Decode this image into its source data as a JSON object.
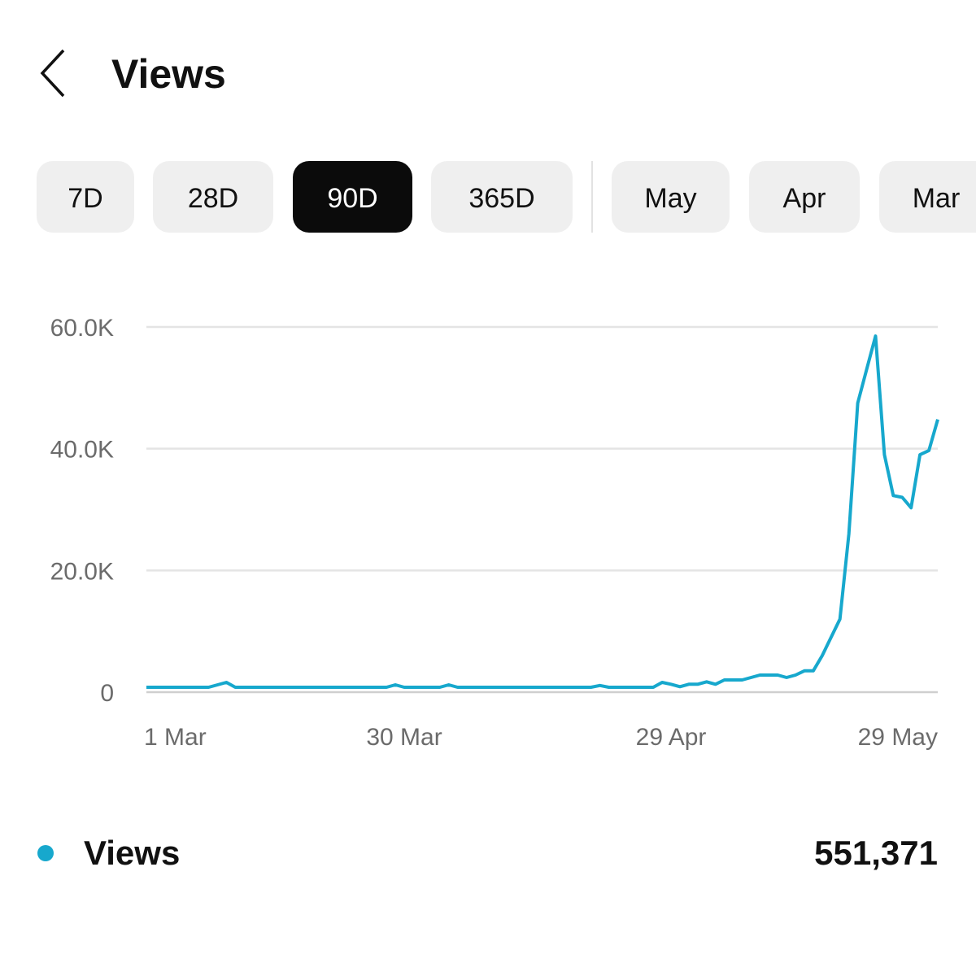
{
  "header": {
    "title": "Views"
  },
  "tabs": [
    {
      "label": "7D"
    },
    {
      "label": "28D"
    },
    {
      "label": "90D",
      "selected": true
    },
    {
      "label": "365D"
    },
    {
      "label": "May"
    },
    {
      "label": "Apr"
    },
    {
      "label": "Mar"
    }
  ],
  "chart_data": {
    "type": "line",
    "categories": [
      "1 Mar",
      null,
      null,
      null,
      null,
      null,
      null,
      null,
      null,
      null,
      null,
      null,
      null,
      null,
      null,
      null,
      null,
      null,
      null,
      null,
      null,
      null,
      null,
      null,
      null,
      null,
      null,
      null,
      null,
      "30 Mar",
      null,
      null,
      null,
      null,
      null,
      null,
      null,
      null,
      null,
      null,
      null,
      null,
      null,
      null,
      null,
      null,
      null,
      null,
      null,
      null,
      null,
      null,
      null,
      null,
      null,
      null,
      null,
      null,
      null,
      "29 Apr",
      null,
      null,
      null,
      null,
      null,
      null,
      null,
      null,
      null,
      null,
      null,
      null,
      null,
      null,
      null,
      null,
      null,
      null,
      null,
      null,
      null,
      null,
      null,
      null,
      null,
      null,
      null,
      null,
      null,
      "29 May"
    ],
    "series": [
      {
        "name": "Views",
        "color": "#17a8cd",
        "values": [
          800,
          800,
          800,
          800,
          800,
          800,
          800,
          800,
          1200,
          1600,
          800,
          800,
          800,
          800,
          800,
          800,
          800,
          800,
          800,
          800,
          800,
          800,
          800,
          800,
          800,
          800,
          800,
          800,
          1200,
          800,
          800,
          800,
          800,
          800,
          1200,
          800,
          800,
          800,
          800,
          800,
          800,
          800,
          800,
          800,
          800,
          800,
          800,
          800,
          800,
          800,
          800,
          1100,
          800,
          800,
          800,
          800,
          800,
          800,
          1600,
          1300,
          900,
          1300,
          1300,
          1700,
          1300,
          2000,
          2000,
          2000,
          2400,
          2800,
          2800,
          2800,
          2400,
          2800,
          3500,
          3500,
          6000,
          9000,
          12000,
          26000,
          47500,
          53000,
          58500,
          39000,
          32300,
          32000,
          30300,
          39000,
          39700,
          44800
        ]
      }
    ],
    "ylim": [
      0,
      60000
    ],
    "yticks": [
      0,
      {
        "value": 20000,
        "label": "20.0K"
      },
      {
        "value": 40000,
        "label": "40.0K"
      },
      {
        "value": 60000,
        "label": "60.0K"
      }
    ],
    "grid": true
  },
  "summary": {
    "total": "551,371"
  }
}
